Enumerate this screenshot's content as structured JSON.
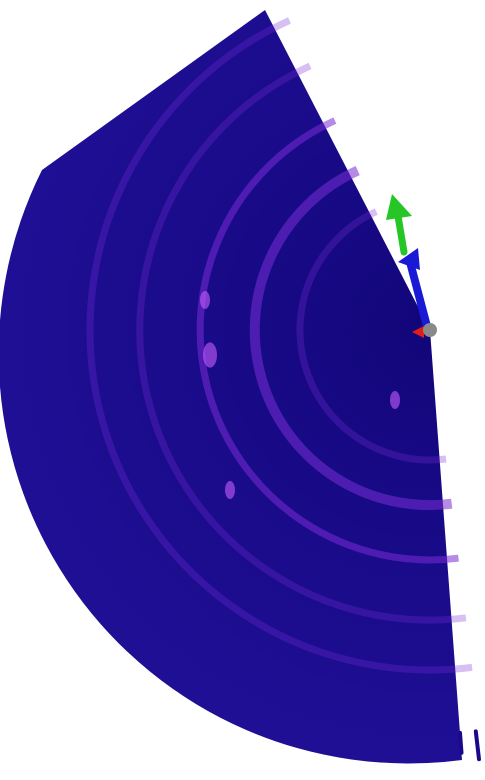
{
  "scene": {
    "background_color": "#ffffff",
    "fan": {
      "base_color": "#1a0a8a",
      "highlight_color": "#7a2bd6",
      "hotspot_color": "#c65bff"
    },
    "axes_gizmo": {
      "x_axis_color": "#e21b1b",
      "y_axis_color": "#26c626",
      "z_axis_color": "#1a1ad6",
      "origin_color": "#8a8a8a"
    }
  }
}
